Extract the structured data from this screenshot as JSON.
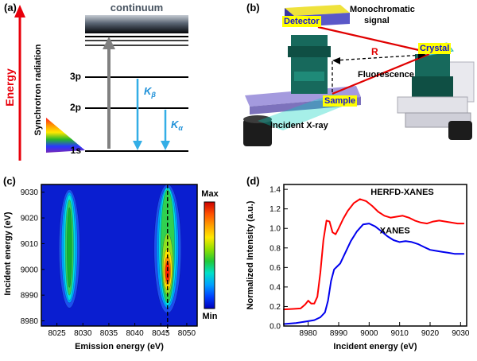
{
  "figure": {
    "background": "#ffffff"
  },
  "panel_a": {
    "label": "(a)",
    "energy_axis": "Energy",
    "synchrotron": "Synchrotron radiation",
    "continuum": "continuum",
    "levels": {
      "l3p": "3p",
      "l2p": "2p",
      "l1s": "1s"
    },
    "kbeta": {
      "main": "K",
      "sub": "β"
    },
    "kalpha": {
      "main": "K",
      "sub": "α"
    },
    "colors": {
      "energy_arrow": "#e8000b",
      "absorption_arrow": "#808080",
      "emission_arrow": "#33aee6"
    }
  },
  "panel_b": {
    "label": "(b)",
    "detector": "Detector",
    "monochromatic_line1": "Monochromatic",
    "monochromatic_line2": "signal",
    "crystal": "Crystal",
    "radius": "R",
    "fluorescence": "Fluorescence",
    "sample": "Sample",
    "incident_xray": "Incident X-ray",
    "highlight": {
      "bg": "#ffff00",
      "text": "#1616d0"
    }
  },
  "chart_data": [
    {
      "type": "heatmap",
      "panel_label": "(c)",
      "xlabel": "Emission energy (eV)",
      "ylabel": "Incident energy (eV)",
      "xlim": [
        8022,
        8052
      ],
      "ylim": [
        8978,
        9033
      ],
      "x_ticks": [
        8025,
        8030,
        8035,
        8040,
        8045,
        8050
      ],
      "y_ticks": [
        8980,
        8990,
        9000,
        9010,
        9020,
        9030
      ],
      "background_color": "#0a1ed0",
      "dashed_line_emission": 8046.3,
      "colorbar": {
        "max_label": "Max",
        "min_label": "Min",
        "colors_top_to_bottom": [
          "#cc0000",
          "#ff5000",
          "#ffa000",
          "#ffe800",
          "#90e000",
          "#20c838",
          "#00e0c8",
          "#00a0ff",
          "#0040ff",
          "#0000bb"
        ]
      },
      "features": [
        {
          "name": "weak-emission-line",
          "emission_center": 8027.4,
          "contours": [
            {
              "color": "#1e50ee",
              "emission_halfwidth": 2.0,
              "incident_range": [
                8985,
                9031
              ]
            },
            {
              "color": "#00a0ff",
              "emission_halfwidth": 1.55,
              "incident_range": [
                8987,
                9030
              ]
            },
            {
              "color": "#00e0e0",
              "emission_halfwidth": 1.15,
              "incident_range": [
                8988,
                9029
              ]
            },
            {
              "color": "#38d058",
              "emission_halfwidth": 0.8,
              "incident_range": [
                8990,
                9027
              ]
            },
            {
              "color": "#10b430",
              "emission_halfwidth": 0.45,
              "incident_range": [
                8993,
                9024
              ]
            }
          ]
        },
        {
          "name": "strong-emission-line",
          "emission_center": 8046.3,
          "contours": [
            {
              "color": "#1e50ee",
              "emission_halfwidth": 2.6,
              "incident_range": [
                8983,
                9033
              ]
            },
            {
              "color": "#00a0ff",
              "emission_halfwidth": 2.1,
              "incident_range": [
                8985,
                9032
              ]
            },
            {
              "color": "#00e0e0",
              "emission_halfwidth": 1.7,
              "incident_range": [
                8986,
                9032
              ]
            },
            {
              "color": "#30d050",
              "emission_halfwidth": 1.35,
              "incident_range": [
                8987,
                9031
              ]
            },
            {
              "color": "#90e020",
              "emission_halfwidth": 1.05,
              "incident_range": [
                8990,
                9014
              ]
            },
            {
              "color": "#ffe000",
              "emission_halfwidth": 0.85,
              "incident_range": [
                8992,
                9008
              ]
            },
            {
              "color": "#ff9000",
              "emission_halfwidth": 0.6,
              "incident_range": [
                8994,
                9005
              ]
            },
            {
              "color": "#ff2000",
              "emission_halfwidth": 0.38,
              "incident_range": [
                8995,
                9003
              ]
            }
          ]
        }
      ]
    },
    {
      "type": "line",
      "panel_label": "(d)",
      "xlabel": "Incident energy (eV)",
      "ylabel": "Normalized Intensity (a.u.)",
      "xlim": [
        8972,
        9032
      ],
      "ylim": [
        0,
        1.45
      ],
      "x_ticks": [
        8980,
        8990,
        9000,
        9010,
        9020,
        9030
      ],
      "y_ticks": [
        "0.0",
        "0.2",
        "0.4",
        "0.6",
        "0.8",
        "1.0",
        "1.2",
        "1.4"
      ],
      "series": [
        {
          "name": "HERFD-XANES",
          "color": "#ff0000",
          "label_anchor": [
            9000.5,
            1.345
          ],
          "points": [
            [
              8972,
              0.17
            ],
            [
              8975,
              0.175
            ],
            [
              8977.5,
              0.18
            ],
            [
              8979,
              0.22
            ],
            [
              8980,
              0.26
            ],
            [
              8981,
              0.23
            ],
            [
              8982,
              0.23
            ],
            [
              8983,
              0.3
            ],
            [
              8984,
              0.55
            ],
            [
              8985,
              0.88
            ],
            [
              8986,
              1.08
            ],
            [
              8987,
              1.07
            ],
            [
              8988,
              0.96
            ],
            [
              8989,
              0.94
            ],
            [
              8990,
              1.0
            ],
            [
              8991.5,
              1.1
            ],
            [
              8993,
              1.18
            ],
            [
              8995,
              1.26
            ],
            [
              8997,
              1.3
            ],
            [
              8999,
              1.28
            ],
            [
              9001,
              1.23
            ],
            [
              9003,
              1.17
            ],
            [
              9005,
              1.13
            ],
            [
              9007,
              1.11
            ],
            [
              9009,
              1.12
            ],
            [
              9011,
              1.13
            ],
            [
              9013,
              1.11
            ],
            [
              9015,
              1.08
            ],
            [
              9017,
              1.06
            ],
            [
              9019,
              1.05
            ],
            [
              9021,
              1.07
            ],
            [
              9023,
              1.08
            ],
            [
              9025,
              1.07
            ],
            [
              9027,
              1.06
            ],
            [
              9029,
              1.05
            ],
            [
              9031,
              1.05
            ]
          ]
        },
        {
          "name": "XANES",
          "color": "#0000ee",
          "label_anchor": [
            9003.5,
            0.95
          ],
          "points": [
            [
              8972,
              0.02
            ],
            [
              8976,
              0.03
            ],
            [
              8980,
              0.05
            ],
            [
              8982,
              0.06
            ],
            [
              8984,
              0.09
            ],
            [
              8985.5,
              0.14
            ],
            [
              8986.5,
              0.26
            ],
            [
              8987.5,
              0.46
            ],
            [
              8988.5,
              0.58
            ],
            [
              8989.5,
              0.61
            ],
            [
              8990.5,
              0.64
            ],
            [
              8992,
              0.74
            ],
            [
              8994,
              0.87
            ],
            [
              8996,
              0.97
            ],
            [
              8998,
              1.04
            ],
            [
              9000,
              1.05
            ],
            [
              9002,
              1.02
            ],
            [
              9004,
              0.97
            ],
            [
              9006,
              0.92
            ],
            [
              9008,
              0.88
            ],
            [
              9010,
              0.86
            ],
            [
              9012,
              0.87
            ],
            [
              9014,
              0.86
            ],
            [
              9016,
              0.84
            ],
            [
              9018,
              0.81
            ],
            [
              9020,
              0.78
            ],
            [
              9022,
              0.77
            ],
            [
              9024,
              0.76
            ],
            [
              9026,
              0.75
            ],
            [
              9028,
              0.74
            ],
            [
              9031,
              0.74
            ]
          ]
        }
      ]
    }
  ]
}
